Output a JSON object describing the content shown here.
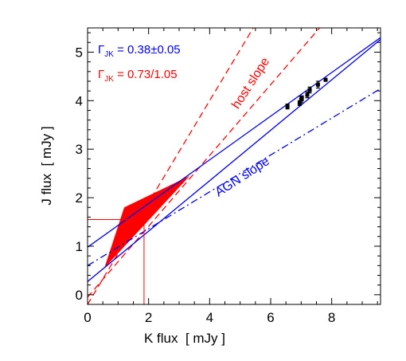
{
  "chart_data": {
    "type": "scatter",
    "xlabel": "K flux  [ mJy ]",
    "ylabel": "J flux  [ mJy ]",
    "xlim": [
      0,
      9.6
    ],
    "ylim": [
      -0.2,
      5.5
    ],
    "xticks": [
      0,
      2,
      4,
      6,
      8
    ],
    "yticks": [
      0,
      1,
      2,
      3,
      4,
      5
    ],
    "colors": {
      "agn": "#0000ee",
      "host": "#ff0000",
      "data": "#000000"
    },
    "annotations": {
      "gamma_agn": {
        "symbol": "Γ",
        "subscript": "JK",
        "rest": " = 0.38±0.05"
      },
      "gamma_host": {
        "symbol": "Γ",
        "subscript": "JK",
        "rest": " = 0.73/1.05"
      },
      "host_slope": "host slope",
      "agn_slope": "AGN slope"
    },
    "points": [
      {
        "x": 6.55,
        "y": 3.88,
        "yerr": 0.05
      },
      {
        "x": 6.95,
        "y": 3.95,
        "yerr": 0.05
      },
      {
        "x": 7.0,
        "y": 4.02,
        "yerr": 0.06
      },
      {
        "x": 7.02,
        "y": 4.05,
        "yerr": 0.05
      },
      {
        "x": 7.2,
        "y": 4.12,
        "yerr": 0.06
      },
      {
        "x": 7.28,
        "y": 4.22,
        "yerr": 0.06
      },
      {
        "x": 7.55,
        "y": 4.33,
        "yerr": 0.07
      },
      {
        "x": 7.8,
        "y": 4.43,
        "yerr": 0.03
      }
    ],
    "agn_fit": {
      "slope": 0.38,
      "intercept": 0.6,
      "style": "dash-dot"
    },
    "agn_bounds": [
      {
        "slope": 0.45,
        "intercept": 0.98
      },
      {
        "slope": 0.52,
        "intercept": 0.27
      }
    ],
    "host_lines": [
      {
        "slope": 0.73,
        "intercept": -0.05,
        "style": "dashed"
      },
      {
        "slope": 1.05,
        "intercept": -0.2,
        "style": "dashed"
      }
    ],
    "host_region": [
      [
        0.55,
        0.55
      ],
      [
        3.35,
        2.45
      ],
      [
        1.2,
        1.8
      ]
    ],
    "host_marker": {
      "x": 1.85,
      "y": 1.55
    }
  }
}
